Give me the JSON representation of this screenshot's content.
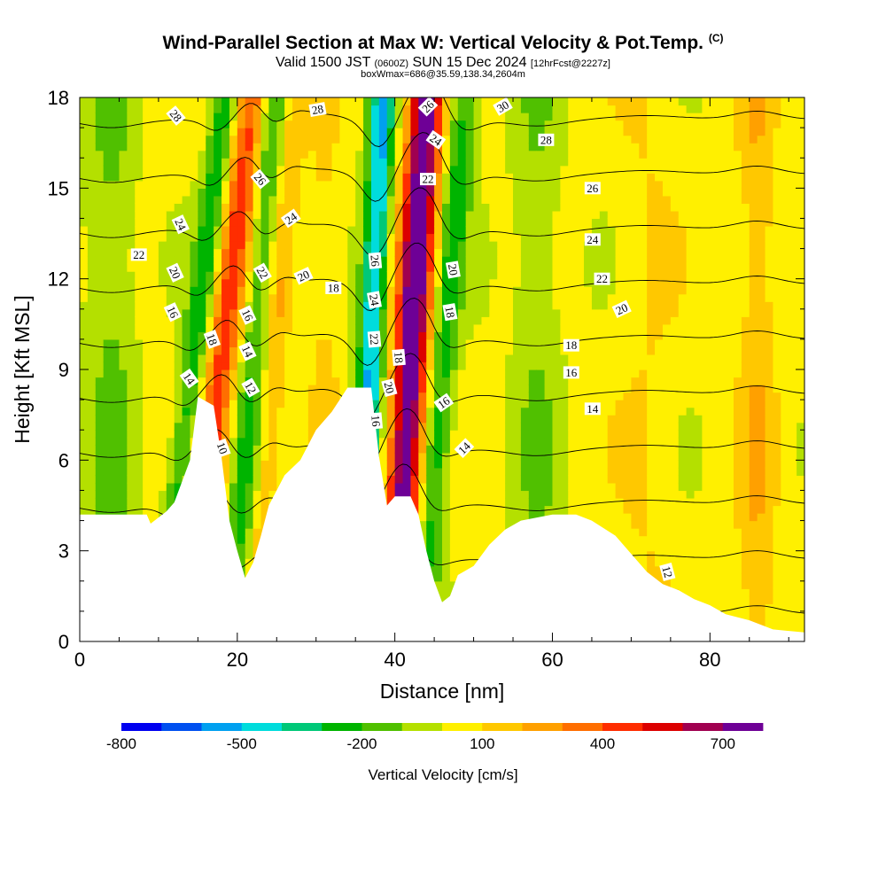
{
  "header": {
    "title": "Wind-Parallel Section at Max W: Vertical Velocity & Pot.Temp.",
    "title_mark": "(C)",
    "subtitle_a": "Valid 1500 JST",
    "subtitle_b": "(0600Z)",
    "subtitle_c": "SUN 15 Dec 2024",
    "subtitle_d": "[12hrFcst@2227z]",
    "subtitle2": "boxWmax=686@35.59,138.34,2604m"
  },
  "chart_data": {
    "type": "heatmap",
    "title": "Wind-Parallel Section at Max W: Vertical Velocity & Pot.Temp.",
    "xlabel": "Distance [nm]",
    "ylabel": "Height [Kft MSL]",
    "xlim": [
      0,
      92
    ],
    "ylim": [
      0,
      18
    ],
    "x_ticks": [
      0,
      20,
      40,
      60,
      80
    ],
    "y_ticks": [
      0,
      3,
      6,
      9,
      12,
      15,
      18
    ],
    "colorbar": {
      "title": "Vertical Velocity [cm/s]",
      "tick_values": [
        -800,
        -500,
        -200,
        100,
        400,
        700
      ],
      "bins": [
        -800,
        -700,
        -600,
        -500,
        -400,
        -300,
        -200,
        -100,
        0,
        100,
        200,
        300,
        400,
        500,
        600,
        700,
        800
      ],
      "colors": [
        "#0000f0",
        "#0050f0",
        "#00a0f0",
        "#00dcdc",
        "#00c878",
        "#00b400",
        "#50c000",
        "#b4e000",
        "#fff000",
        "#ffc800",
        "#ffa000",
        "#ff6e00",
        "#ff2d00",
        "#dc0000",
        "#a00050",
        "#6e0096"
      ]
    },
    "terrain": [
      [
        0,
        4.2
      ],
      [
        8.5,
        4.2
      ],
      [
        9,
        3.9
      ],
      [
        11,
        4.3
      ],
      [
        12,
        4.6
      ],
      [
        14,
        6.0
      ],
      [
        15,
        8.1
      ],
      [
        17,
        7.8
      ],
      [
        18,
        6.1
      ],
      [
        19,
        4.0
      ],
      [
        20,
        3.0
      ],
      [
        21,
        2.1
      ],
      [
        22,
        2.6
      ],
      [
        23,
        3.5
      ],
      [
        24,
        4.5
      ],
      [
        26,
        5.5
      ],
      [
        28,
        6.0
      ],
      [
        30,
        7.0
      ],
      [
        32,
        7.6
      ],
      [
        34,
        8.4
      ],
      [
        37,
        8.4
      ],
      [
        38,
        6.1
      ],
      [
        39,
        4.5
      ],
      [
        40,
        4.8
      ],
      [
        42,
        4.8
      ],
      [
        43,
        4.2
      ],
      [
        44,
        3.0
      ],
      [
        45,
        2.0
      ],
      [
        46,
        1.3
      ],
      [
        47,
        1.5
      ],
      [
        48,
        2.2
      ],
      [
        50,
        2.5
      ],
      [
        52,
        3.2
      ],
      [
        54,
        3.7
      ],
      [
        56,
        4.0
      ],
      [
        60,
        4.2
      ],
      [
        63,
        4.2
      ],
      [
        65,
        4.0
      ],
      [
        68,
        3.5
      ],
      [
        70,
        2.9
      ],
      [
        72,
        2.3
      ],
      [
        74,
        1.9
      ],
      [
        76,
        1.7
      ],
      [
        78,
        1.4
      ],
      [
        80,
        1.2
      ],
      [
        82,
        0.9
      ],
      [
        85,
        0.7
      ],
      [
        88,
        0.4
      ],
      [
        92,
        0.3
      ]
    ],
    "updrafts": [
      {
        "x": 16.5,
        "y": 6.0,
        "slope": 0.45,
        "width": 2.0,
        "peak": 420
      },
      {
        "x": 41.0,
        "y": 4.5,
        "slope": 0.22,
        "width": 2.2,
        "peak": 790
      },
      {
        "x": 26.0,
        "y": 13.0,
        "slope": 0.3,
        "width": 1.4,
        "peak": 160
      },
      {
        "x": 31.0,
        "y": 11.0,
        "slope": 0.0,
        "width": 2.0,
        "peak": 90
      },
      {
        "x": 72.0,
        "y": 5.0,
        "slope": 0.0,
        "width": 4.0,
        "peak": 70
      },
      {
        "x": 86.0,
        "y": 3.0,
        "slope": 0.0,
        "width": 2.5,
        "peak": 150
      }
    ],
    "downdrafts": [
      {
        "x": 13.5,
        "y": 7.0,
        "slope": 0.45,
        "width": 1.6,
        "peak": -300
      },
      {
        "x": 21.0,
        "y": 6.0,
        "slope": 0.3,
        "width": 1.6,
        "peak": -240
      },
      {
        "x": 36.5,
        "y": 7.0,
        "slope": 0.18,
        "width": 1.6,
        "peak": -560
      },
      {
        "x": 46.0,
        "y": 9.0,
        "slope": 0.3,
        "width": 1.8,
        "peak": -280
      },
      {
        "x": 4.0,
        "y": 8.0,
        "slope": 0.0,
        "width": 3.0,
        "peak": -150
      },
      {
        "x": 58.0,
        "y": 3.5,
        "slope": 0.0,
        "width": 3.0,
        "peak": -120
      }
    ],
    "theta_contours": [
      10,
      12,
      14,
      16,
      18,
      20,
      22,
      24,
      26,
      28,
      30
    ],
    "theta_labels": [
      {
        "v": "28",
        "x": 12.2,
        "y": 17.4,
        "rot": 50
      },
      {
        "v": "28",
        "x": 30.2,
        "y": 17.6,
        "rot": -10
      },
      {
        "v": "26",
        "x": 22.9,
        "y": 15.3,
        "rot": 50
      },
      {
        "v": "26",
        "x": 44.2,
        "y": 17.7,
        "rot": -45
      },
      {
        "v": "30",
        "x": 53.7,
        "y": 17.7,
        "rot": -30
      },
      {
        "v": "28",
        "x": 59.2,
        "y": 16.6,
        "rot": 0
      },
      {
        "v": "24",
        "x": 45.2,
        "y": 16.6,
        "rot": 35
      },
      {
        "v": "22",
        "x": 44.2,
        "y": 15.3,
        "rot": 0
      },
      {
        "v": "26",
        "x": 65.1,
        "y": 15.0,
        "rot": 0
      },
      {
        "v": "24",
        "x": 12.8,
        "y": 13.8,
        "rot": 65
      },
      {
        "v": "24",
        "x": 26.8,
        "y": 14.0,
        "rot": -35
      },
      {
        "v": "24",
        "x": 65.1,
        "y": 13.3,
        "rot": 0
      },
      {
        "v": "22",
        "x": 7.5,
        "y": 12.8,
        "rot": 0
      },
      {
        "v": "20",
        "x": 12.1,
        "y": 12.2,
        "rot": 65
      },
      {
        "v": "22",
        "x": 23.2,
        "y": 12.2,
        "rot": 60
      },
      {
        "v": "20",
        "x": 28.4,
        "y": 12.1,
        "rot": -25
      },
      {
        "v": "26",
        "x": 37.5,
        "y": 12.6,
        "rot": 85
      },
      {
        "v": "20",
        "x": 47.4,
        "y": 12.3,
        "rot": 80
      },
      {
        "v": "22",
        "x": 66.3,
        "y": 12.0,
        "rot": 0
      },
      {
        "v": "18",
        "x": 32.2,
        "y": 11.7,
        "rot": 0
      },
      {
        "v": "16",
        "x": 11.8,
        "y": 10.9,
        "rot": 65
      },
      {
        "v": "24",
        "x": 37.4,
        "y": 11.3,
        "rot": 80
      },
      {
        "v": "16",
        "x": 21.3,
        "y": 10.8,
        "rot": 65
      },
      {
        "v": "18",
        "x": 47.0,
        "y": 10.9,
        "rot": 80
      },
      {
        "v": "20",
        "x": 68.8,
        "y": 11.0,
        "rot": -25
      },
      {
        "v": "18",
        "x": 16.8,
        "y": 10.0,
        "rot": 70
      },
      {
        "v": "22",
        "x": 37.4,
        "y": 10.0,
        "rot": 85
      },
      {
        "v": "18",
        "x": 62.4,
        "y": 9.8,
        "rot": 0
      },
      {
        "v": "14",
        "x": 21.3,
        "y": 9.6,
        "rot": 65
      },
      {
        "v": "18",
        "x": 40.5,
        "y": 9.4,
        "rot": 85
      },
      {
        "v": "16",
        "x": 62.4,
        "y": 8.9,
        "rot": 0
      },
      {
        "v": "14",
        "x": 13.9,
        "y": 8.7,
        "rot": 55
      },
      {
        "v": "12",
        "x": 21.7,
        "y": 8.4,
        "rot": 60
      },
      {
        "v": "20",
        "x": 39.3,
        "y": 8.4,
        "rot": 75
      },
      {
        "v": "16",
        "x": 46.2,
        "y": 7.9,
        "rot": -35
      },
      {
        "v": "14",
        "x": 65.1,
        "y": 7.7,
        "rot": 0
      },
      {
        "v": "16",
        "x": 37.6,
        "y": 7.3,
        "rot": 85
      },
      {
        "v": "14",
        "x": 48.8,
        "y": 6.4,
        "rot": -45
      },
      {
        "v": "10",
        "x": 18.1,
        "y": 6.4,
        "rot": 70
      },
      {
        "v": "12",
        "x": 74.6,
        "y": 2.3,
        "rot": 75
      }
    ]
  }
}
